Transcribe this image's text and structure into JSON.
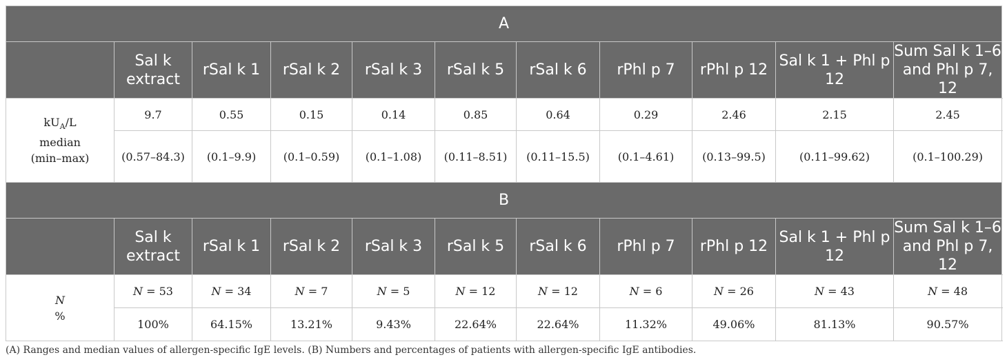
{
  "table_a": {
    "title": "A",
    "columns": [
      "Sal k extract",
      "rSal k 1",
      "rSal k 2",
      "rSal k 3",
      "rSal k 5",
      "rSal k 6",
      "rPhl p 7",
      "rPhl p 12",
      "Sal k 1 + Phl p 12",
      "Sum Sal k 1–6 and Phl p 7, 12"
    ],
    "label_line1_prefix": "kU",
    "label_line1_sub": "A",
    "label_line1_suffix": "/L",
    "label_line2": "median",
    "label_line3": "(min–max)",
    "medians": [
      "9.7",
      "0.55",
      "0.15",
      "0.14",
      "0.85",
      "0.64",
      "0.29",
      "2.46",
      "2.15",
      "2.45"
    ],
    "ranges": [
      "(0.57–84.3)",
      "(0.1–9.9)",
      "(0.1–0.59)",
      "(0.1–1.08)",
      "(0.11–8.51)",
      "(0.11–15.5)",
      "(0.1–4.61)",
      "(0.13–99.5)",
      "(0.11–99.62)",
      "(0.1–100.29)"
    ]
  },
  "table_b": {
    "title": "B",
    "columns": [
      "Sal k extract",
      "rSal k 1",
      "rSal k 2",
      "rSal k 3",
      "rSal k 5",
      "rSal k 6",
      "rPhl p 7",
      "rPhl p 12",
      "Sal k 1 + Phl p 12",
      "Sum Sal k 1–6 and Phl p 7, 12"
    ],
    "label_line1": "N",
    "label_line2": "%",
    "n_prefix": "N",
    "counts": [
      "= 53",
      "= 34",
      "= 7",
      "= 5",
      "= 12",
      "= 12",
      "= 6",
      "= 26",
      "= 43",
      "= 48"
    ],
    "percentages": [
      "100%",
      "64.15%",
      "13.21%",
      "9.43%",
      "22.64%",
      "22.64%",
      "11.32%",
      "49.06%",
      "81.13%",
      "90.57%"
    ]
  },
  "caption": "(A) Ranges and median values of allergen-specific IgE levels. (B) Numbers and percentages of patients with allergen-specific IgE antibodies."
}
